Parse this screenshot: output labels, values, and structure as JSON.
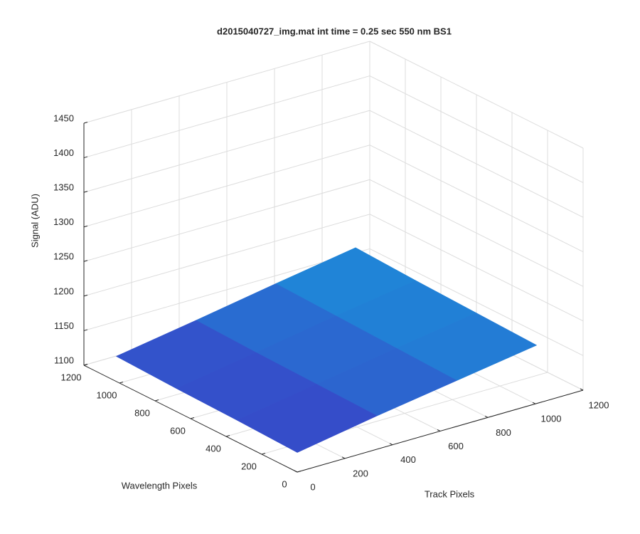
{
  "chart_data": {
    "type": "surface3d",
    "title": "d2015040727_img.mat int time = 0.25 sec  550 nm BS1",
    "xlabel": "Track Pixels",
    "ylabel": "Wavelength Pixels",
    "zlabel": "Signal (ADU)",
    "x": [
      1,
      336,
      671,
      1006
    ],
    "y": [
      1,
      341,
      681,
      1020
    ],
    "z": [
      [
        1128,
        1148,
        1166,
        1184
      ],
      [
        1131,
        1150,
        1169,
        1187
      ],
      [
        1133,
        1152,
        1172,
        1190
      ],
      [
        1136,
        1155,
        1175,
        1194
      ]
    ],
    "colormap": [
      "#3b3fc6",
      "#1a92da"
    ],
    "xlim": [
      0,
      1200
    ],
    "xticks": [
      0,
      200,
      400,
      600,
      800,
      1000,
      1200
    ],
    "ylim": [
      0,
      1200
    ],
    "yticks": [
      0,
      200,
      400,
      600,
      800,
      1000,
      1200
    ],
    "zlim": [
      1100,
      1450
    ],
    "zticks": [
      1100,
      1150,
      1200,
      1250,
      1300,
      1350,
      1400,
      1450
    ],
    "grid": true
  }
}
